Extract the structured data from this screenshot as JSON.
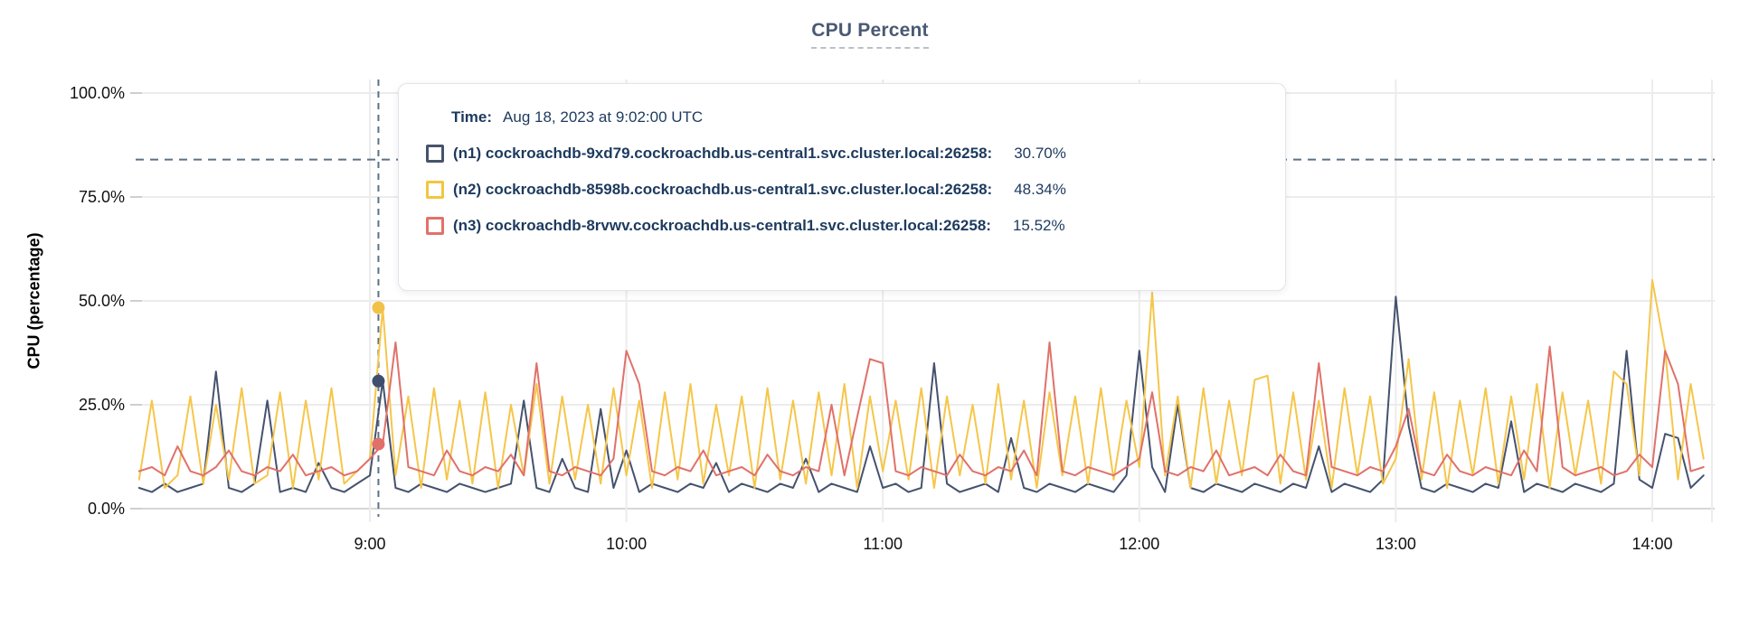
{
  "title": "CPU Percent",
  "tooltip": {
    "time_label": "Time:",
    "time_value": "Aug 18, 2023 at 9:02:00 UTC",
    "rows": [
      {
        "id": "n1",
        "name": "(n1) cockroachdb-9xd79.cockroachdb.us-central1.svc.cluster.local:26258:",
        "value": "30.70%",
        "color": "#47536b"
      },
      {
        "id": "n2",
        "name": "(n2) cockroachdb-8598b.cockroachdb.us-central1.svc.cluster.local:26258:",
        "value": "48.34%",
        "color": "#f2c640"
      },
      {
        "id": "n3",
        "name": "(n3) cockroachdb-8rvwv.cockroachdb.us-central1.svc.cluster.local:26258:",
        "value": "15.52%",
        "color": "#e2716b"
      }
    ]
  },
  "chart_data": {
    "type": "line",
    "title": "CPU Percent",
    "xlabel": "",
    "ylabel": "CPU (percentage)",
    "ylim": [
      0,
      100
    ],
    "grid": true,
    "legend_position": "tooltip-overlay",
    "y_ticks": [
      {
        "value": 0,
        "label": "0.0%"
      },
      {
        "value": 25,
        "label": "25.0%"
      },
      {
        "value": 50,
        "label": "50.0%"
      },
      {
        "value": 75,
        "label": "75.0%"
      },
      {
        "value": 100,
        "label": "100.0%"
      }
    ],
    "x_ticks": [
      {
        "hour": 9,
        "label": "9:00"
      },
      {
        "hour": 10,
        "label": "10:00"
      },
      {
        "hour": 11,
        "label": "11:00"
      },
      {
        "hour": 12,
        "label": "12:00"
      },
      {
        "hour": 13,
        "label": "13:00"
      },
      {
        "hour": 14,
        "label": "14:00"
      }
    ],
    "x_start_hour": 8.1,
    "x_step_minutes": 3,
    "series": [
      {
        "id": "n1",
        "name": "(n1) cockroachdb-9xd79.cockroachdb.us-central1.svc.cluster.local:26258",
        "color": "#45526e",
        "values": [
          5,
          4,
          6,
          4,
          5,
          6,
          33,
          5,
          4,
          6,
          26,
          4,
          5,
          4,
          11,
          5,
          4,
          6,
          8,
          30.7,
          5,
          4,
          6,
          5,
          4,
          6,
          5,
          4,
          5,
          6,
          26,
          5,
          4,
          12,
          5,
          4,
          24,
          5,
          14,
          4,
          6,
          5,
          4,
          6,
          5,
          11,
          4,
          6,
          5,
          4,
          6,
          5,
          12,
          4,
          6,
          5,
          4,
          15,
          5,
          6,
          4,
          5,
          35,
          6,
          4,
          5,
          6,
          4,
          17,
          5,
          4,
          6,
          5,
          4,
          6,
          5,
          4,
          8,
          38,
          10,
          4,
          25,
          5,
          4,
          6,
          5,
          4,
          6,
          5,
          4,
          6,
          5,
          15,
          4,
          6,
          5,
          4,
          7,
          51,
          20,
          5,
          4,
          6,
          5,
          4,
          6,
          5,
          21,
          4,
          6,
          5,
          4,
          6,
          5,
          4,
          6,
          38,
          7,
          5,
          18,
          17,
          5,
          8
        ]
      },
      {
        "id": "n2",
        "name": "(n2) cockroachdb-8598b.cockroachdb.us-central1.svc.cluster.local:26258",
        "color": "#f5c64a",
        "values": [
          7,
          26,
          5,
          8,
          27,
          6,
          25,
          7,
          29,
          6,
          8,
          28,
          5,
          26,
          7,
          29,
          6,
          9,
          12,
          48.3,
          8,
          27,
          5,
          29,
          7,
          26,
          6,
          28,
          5,
          25,
          8,
          30,
          6,
          27,
          7,
          25,
          6,
          29,
          8,
          26,
          5,
          28,
          7,
          30,
          6,
          25,
          8,
          27,
          5,
          29,
          7,
          26,
          6,
          28,
          8,
          30,
          5,
          27,
          9,
          26,
          7,
          29,
          5,
          27,
          8,
          25,
          6,
          30,
          7,
          26,
          5,
          28,
          8,
          27,
          6,
          29,
          7,
          26,
          10,
          52,
          8,
          27,
          5,
          29,
          6,
          26,
          8,
          31,
          32,
          6,
          28,
          7,
          26,
          5,
          29,
          8,
          27,
          6,
          12,
          36,
          7,
          28,
          5,
          26,
          8,
          29,
          6,
          27,
          7,
          30,
          5,
          28,
          8,
          26,
          6,
          33,
          30,
          8,
          55,
          38,
          7,
          30,
          12
        ]
      },
      {
        "id": "n3",
        "name": "(n3) cockroachdb-8rvwv.cockroachdb.us-central1.svc.cluster.local:26258",
        "color": "#e0716a",
        "values": [
          9,
          10,
          8,
          15,
          9,
          8,
          10,
          14,
          9,
          8,
          10,
          9,
          13,
          8,
          9,
          10,
          8,
          9,
          12,
          15.5,
          40,
          10,
          9,
          8,
          14,
          9,
          8,
          10,
          9,
          13,
          8,
          35,
          9,
          8,
          10,
          9,
          8,
          12,
          38,
          30,
          9,
          8,
          10,
          9,
          14,
          8,
          9,
          10,
          8,
          13,
          9,
          8,
          10,
          9,
          25,
          8,
          22,
          36,
          35,
          9,
          8,
          10,
          9,
          8,
          13,
          9,
          8,
          10,
          9,
          14,
          8,
          40,
          9,
          8,
          10,
          9,
          8,
          10,
          12,
          28,
          9,
          8,
          10,
          9,
          14,
          8,
          9,
          10,
          8,
          13,
          9,
          8,
          35,
          10,
          9,
          8,
          10,
          9,
          15,
          24,
          9,
          8,
          13,
          9,
          8,
          10,
          9,
          8,
          14,
          9,
          39,
          10,
          8,
          9,
          10,
          8,
          9,
          13,
          10,
          38,
          30,
          9,
          10
        ]
      }
    ],
    "crosshair": {
      "time_hour": 9.0333,
      "time_text": "Aug 18, 2023 at 9:02:00 UTC",
      "horizontal_y_percent": 84,
      "color": "#5b7287",
      "points": [
        {
          "series": "n1",
          "value": 30.7,
          "color": "#3f4e6e"
        },
        {
          "series": "n2",
          "value": 48.34,
          "color": "#f2c14a"
        },
        {
          "series": "n3",
          "value": 15.52,
          "color": "#e0716a"
        }
      ]
    }
  }
}
